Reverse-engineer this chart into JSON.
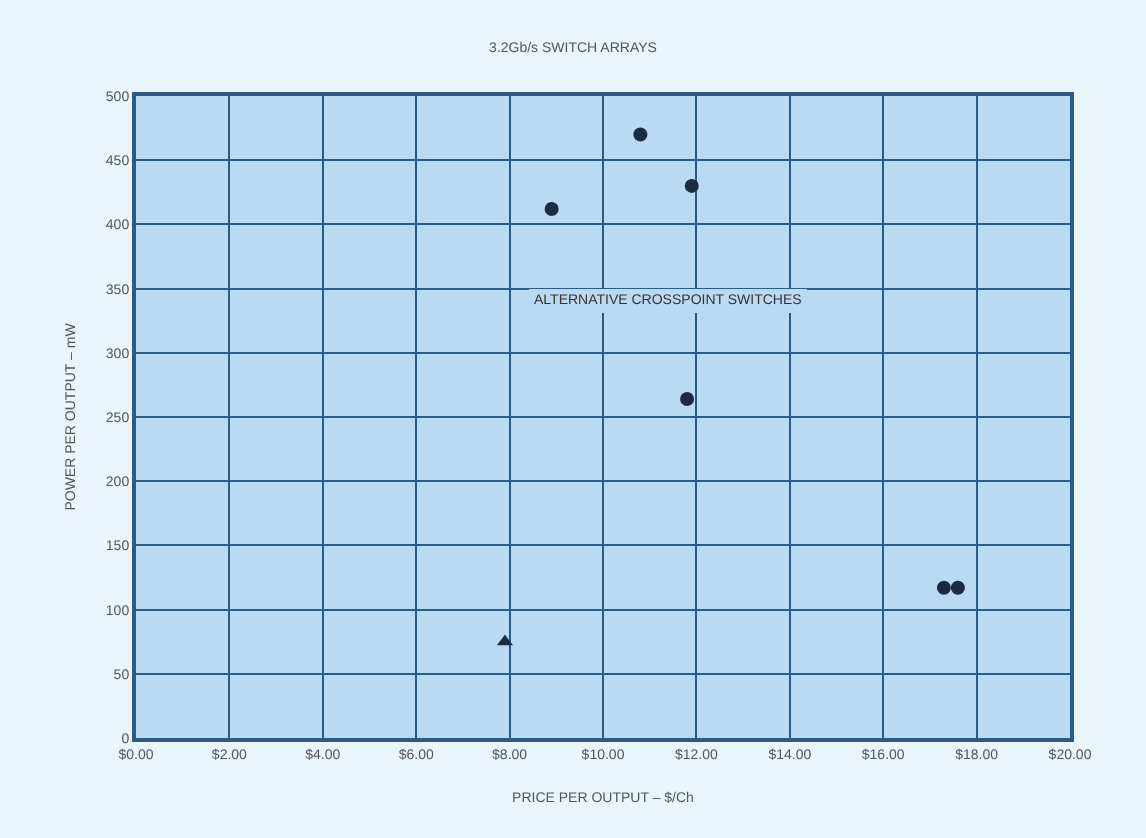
{
  "chart_data": {
    "type": "scatter",
    "title": "3.2Gb/s SWITCH ARRAYS",
    "xlabel": "PRICE PER OUTPUT – $/Ch",
    "ylabel": "POWER PER OUTPUT – mW",
    "xlim": [
      0,
      20
    ],
    "ylim": [
      0,
      500
    ],
    "xticks": [
      {
        "value": 0,
        "label": "$0.00"
      },
      {
        "value": 2,
        "label": "$2.00"
      },
      {
        "value": 4,
        "label": "$4.00"
      },
      {
        "value": 6,
        "label": "$6.00"
      },
      {
        "value": 8,
        "label": "$8.00"
      },
      {
        "value": 10,
        "label": "$10.00"
      },
      {
        "value": 12,
        "label": "$12.00"
      },
      {
        "value": 14,
        "label": "$14.00"
      },
      {
        "value": 16,
        "label": "$16.00"
      },
      {
        "value": 18,
        "label": "$18.00"
      },
      {
        "value": 20,
        "label": "$20.00"
      }
    ],
    "yticks": [
      0,
      50,
      100,
      150,
      200,
      250,
      300,
      350,
      400,
      450,
      500
    ],
    "grid": true,
    "series": [
      {
        "color": "#1b2b44",
        "marker": "circle",
        "x": [
          8.9,
          10.8,
          11.9,
          11.8,
          17.3,
          17.6
        ],
        "values": [
          412,
          470,
          430,
          264,
          117,
          117
        ]
      },
      {
        "color": "#1b2b44",
        "marker": "triangle",
        "x": [
          7.9
        ],
        "values": [
          75
        ]
      }
    ],
    "annotations": [
      "ALTERNATIVE CROSSPOINT SWITCHES"
    ]
  }
}
